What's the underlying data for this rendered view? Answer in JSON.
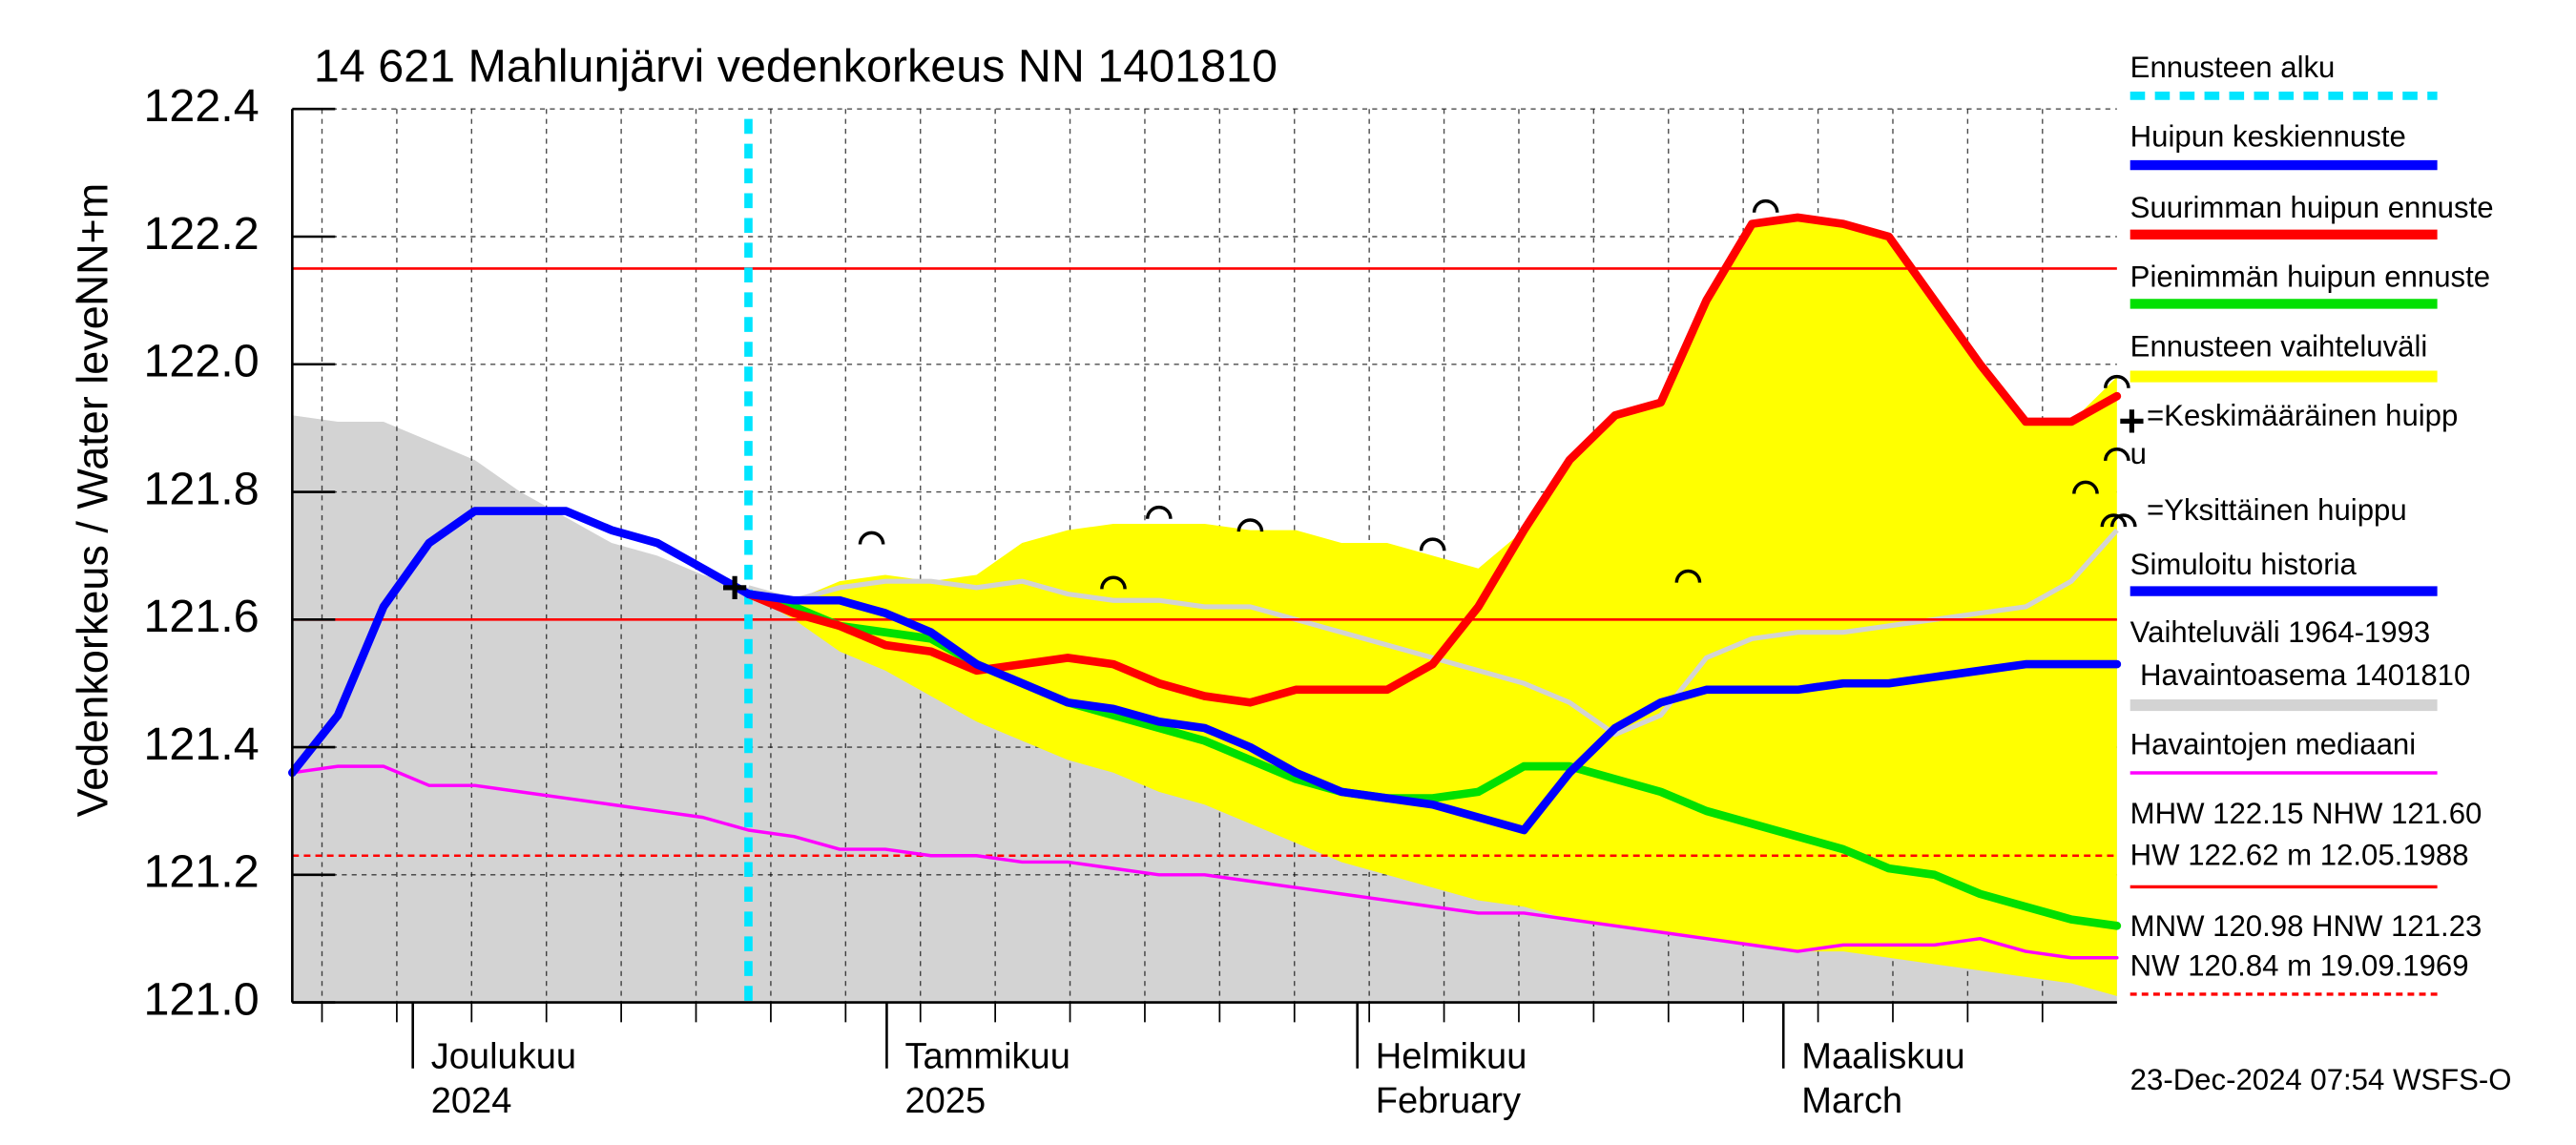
{
  "chart_data": {
    "type": "line",
    "title": "14 621 Mahlunjärvi vedenkorkeus NN 1401810",
    "y_label": "Vedenkorkeus / Water level",
    "y_unit": "NN+m",
    "footer": "23-Dec-2024 07:54 WSFS-O",
    "ylim": [
      121.0,
      122.4
    ],
    "yticks": [
      {
        "value": 121.0,
        "label": "121.0"
      },
      121.2,
      121.4,
      121.6,
      121.8,
      {
        "value": 122.0,
        "label": "122.0"
      },
      122.2,
      122.4
    ],
    "grid": true,
    "month_labels": [
      [
        "Joulukuu",
        "2024"
      ],
      [
        "Tammikuu",
        "2025"
      ],
      [
        "Helmikuu",
        "February"
      ],
      [
        "Maaliskuu",
        "March"
      ]
    ],
    "forecast_start": {
      "name": "Ennusteen alku",
      "color": "#00e5ff",
      "x": 10
    },
    "series": [
      {
        "name": "Huipun keskiennuste",
        "color": "#0000ff",
        "values": [
          null,
          null,
          null,
          null,
          null,
          null,
          null,
          null,
          null,
          null,
          121.64,
          121.63,
          121.63,
          121.61,
          121.58,
          121.53,
          121.5,
          121.47,
          121.46,
          121.44,
          121.43,
          121.4,
          121.36,
          121.33,
          121.32,
          121.31,
          121.29,
          121.27,
          121.36,
          121.43,
          121.47,
          121.49,
          121.49,
          121.49,
          121.5,
          121.5,
          121.51,
          121.52,
          121.53,
          121.53,
          121.53
        ]
      },
      {
        "name": "Suurimman huipun ennuste",
        "color": "#ff0000",
        "values": [
          null,
          null,
          null,
          null,
          null,
          null,
          null,
          null,
          null,
          null,
          121.64,
          121.61,
          121.59,
          121.56,
          121.55,
          121.52,
          121.53,
          121.54,
          121.53,
          121.5,
          121.48,
          121.47,
          121.49,
          121.49,
          121.49,
          121.53,
          121.62,
          121.74,
          121.85,
          121.92,
          121.94,
          122.1,
          122.22,
          122.23,
          122.22,
          122.2,
          122.1,
          122.0,
          121.91,
          121.91,
          121.95
        ]
      },
      {
        "name": "Pienimmän huipun ennuste",
        "color": "#00e000",
        "values": [
          null,
          null,
          null,
          null,
          null,
          null,
          null,
          null,
          null,
          null,
          121.64,
          121.62,
          121.59,
          121.58,
          121.57,
          121.53,
          121.5,
          121.47,
          121.45,
          121.43,
          121.41,
          121.38,
          121.35,
          121.33,
          121.32,
          121.32,
          121.33,
          121.37,
          121.37,
          121.35,
          121.33,
          121.3,
          121.28,
          121.26,
          121.24,
          121.21,
          121.2,
          121.17,
          121.15,
          121.13,
          121.12
        ]
      },
      {
        "name": "Simuloitu historia",
        "color": "#0000ff",
        "values": [
          121.36,
          121.45,
          121.62,
          121.72,
          121.77,
          121.77,
          121.77,
          121.74,
          121.72,
          121.68,
          121.64,
          null,
          null,
          null,
          null,
          null,
          null,
          null,
          null,
          null,
          null,
          null,
          null,
          null,
          null,
          null,
          null,
          null,
          null,
          null,
          null,
          null,
          null,
          null,
          null,
          null,
          null,
          null,
          null,
          null,
          null
        ]
      },
      {
        "name": "Havaintojen mediaani",
        "color": "#ff00ff",
        "values": [
          121.36,
          121.37,
          121.37,
          121.34,
          121.34,
          121.33,
          121.32,
          121.31,
          121.3,
          121.29,
          121.27,
          121.26,
          121.24,
          121.24,
          121.23,
          121.23,
          121.22,
          121.22,
          121.21,
          121.2,
          121.2,
          121.19,
          121.18,
          121.17,
          121.16,
          121.15,
          121.14,
          121.14,
          121.13,
          121.12,
          121.11,
          121.1,
          121.09,
          121.08,
          121.09,
          121.09,
          121.09,
          121.1,
          121.08,
          121.07,
          121.07
        ]
      }
    ],
    "forecast_band": {
      "name": "Ennusteen vaihteluväli",
      "color": "#ffff00",
      "upper": [
        null,
        null,
        null,
        null,
        null,
        null,
        null,
        null,
        null,
        null,
        121.64,
        121.63,
        121.66,
        121.67,
        121.66,
        121.67,
        121.72,
        121.74,
        121.75,
        121.75,
        121.75,
        121.74,
        121.74,
        121.72,
        121.72,
        121.7,
        121.68,
        121.74,
        121.85,
        121.92,
        121.94,
        122.1,
        122.22,
        122.23,
        122.22,
        122.2,
        122.1,
        122.0,
        121.91,
        121.91,
        121.98
      ],
      "lower": [
        null,
        null,
        null,
        null,
        null,
        null,
        null,
        null,
        null,
        null,
        121.64,
        121.6,
        121.55,
        121.52,
        121.48,
        121.44,
        121.41,
        121.38,
        121.36,
        121.33,
        121.31,
        121.28,
        121.25,
        121.22,
        121.2,
        121.18,
        121.16,
        121.15,
        121.13,
        121.12,
        121.11,
        121.1,
        121.09,
        121.08,
        121.08,
        121.07,
        121.06,
        121.05,
        121.04,
        121.03,
        121.01
      ]
    },
    "history_band": {
      "name": [
        "Vaihteluväli 1964-1993",
        "Havaintoasema 1401810"
      ],
      "color": "#d3d3d3",
      "upper": [
        121.92,
        121.91,
        121.91,
        121.88,
        121.85,
        121.8,
        121.76,
        121.72,
        121.7,
        121.67,
        121.65,
        121.63,
        121.65,
        121.66,
        121.66,
        121.65,
        121.66,
        121.64,
        121.63,
        121.63,
        121.62,
        121.62,
        121.6,
        121.58,
        121.56,
        121.54,
        121.52,
        121.5,
        121.47,
        121.42,
        121.45,
        121.54,
        121.57,
        121.58,
        121.58,
        121.59,
        121.6,
        121.61,
        121.62,
        121.66,
        121.74
      ]
    },
    "mean_peak": {
      "name": [
        "=Keskimääräinen huipp",
        "u"
      ],
      "x": 9.7,
      "value": 121.65
    },
    "single_peaks": {
      "name": "=Yksittäinen huippu",
      "x": [
        12.7,
        18.0,
        19.0,
        21.0,
        25.0,
        30.6,
        32.3
      ],
      "values": [
        121.71,
        121.64,
        121.75,
        121.73,
        121.7,
        121.65,
        122.23
      ]
    },
    "reference_lines": [
      {
        "text": [
          "MHW 122.15 NHW 121.60",
          "HW 122.62 m 12.05.1988"
        ],
        "values": [
          122.15,
          121.6
        ],
        "color": "#ff0000",
        "dashed": false
      },
      {
        "text": [
          "MNW 120.98 HNW 121.23",
          "NW 120.84 m 19.09.1969"
        ],
        "values": [
          121.23
        ],
        "color": "#ff0000",
        "dashed": true
      }
    ]
  }
}
